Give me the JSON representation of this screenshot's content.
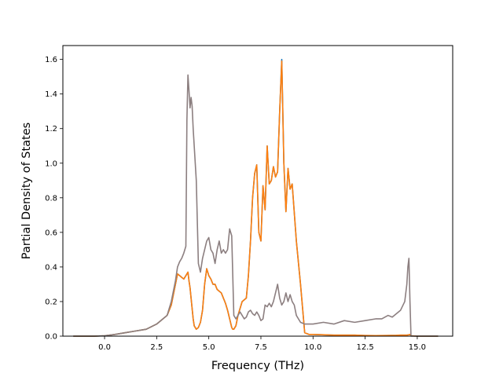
{
  "chart_data": {
    "type": "line",
    "title": "",
    "xlabel": "Frequency (THz)",
    "ylabel": "Partial Density of States",
    "xlim": [
      -2.0,
      16.7
    ],
    "ylim": [
      0.0,
      1.68
    ],
    "xticks": [
      0.0,
      2.5,
      5.0,
      7.5,
      10.0,
      12.5,
      15.0
    ],
    "xtick_labels": [
      "0.0",
      "2.5",
      "5.0",
      "7.5",
      "10.0",
      "12.5",
      "15.0"
    ],
    "yticks": [
      0.0,
      0.2,
      0.4,
      0.6,
      0.8,
      1.0,
      1.2,
      1.4,
      1.6
    ],
    "ytick_labels": [
      "0.0",
      "0.2",
      "0.4",
      "0.6",
      "0.8",
      "1.0",
      "1.2",
      "1.4",
      "1.6"
    ],
    "grid": false,
    "legend": "none",
    "series": [
      {
        "color": "#1f77b4",
        "x": [
          -1.5,
          -0.5,
          0.0,
          0.5,
          1.0,
          1.5,
          2.0,
          2.5,
          3.0,
          3.2,
          3.4,
          3.5,
          3.6,
          3.7,
          3.8,
          3.9,
          4.0,
          4.05,
          4.1,
          4.15,
          4.2,
          4.25,
          4.3,
          4.4,
          4.5,
          4.6,
          4.7,
          4.8,
          4.9,
          5.0,
          5.1,
          5.2,
          5.3,
          5.4,
          5.5,
          5.6,
          5.7,
          5.8,
          5.9,
          6.0,
          6.1,
          6.15,
          6.2,
          6.3,
          6.4,
          6.5,
          6.6,
          6.7,
          6.8,
          6.9,
          7.0,
          7.1,
          7.2,
          7.3,
          7.4,
          7.5,
          7.6,
          7.7,
          7.8,
          7.9,
          8.0,
          8.1,
          8.2,
          8.3,
          8.4,
          8.5,
          8.6,
          8.7,
          8.8,
          8.9,
          9.0,
          9.2,
          9.4,
          9.6,
          9.8,
          10.0,
          11.0,
          12.0,
          12.5,
          13.0,
          13.5,
          14.0,
          14.2,
          14.4,
          14.5,
          14.6,
          14.65,
          14.7,
          15.0,
          16.0
        ],
        "values": [
          0.0,
          0.0,
          0.002,
          0.01,
          0.02,
          0.03,
          0.04,
          0.07,
          0.12,
          0.18,
          0.3,
          0.36,
          0.35,
          0.34,
          0.33,
          0.35,
          0.37,
          0.32,
          0.28,
          0.22,
          0.16,
          0.1,
          0.06,
          0.04,
          0.05,
          0.08,
          0.15,
          0.3,
          0.39,
          0.35,
          0.33,
          0.3,
          0.3,
          0.27,
          0.26,
          0.25,
          0.22,
          0.19,
          0.15,
          0.1,
          0.05,
          0.04,
          0.04,
          0.06,
          0.12,
          0.16,
          0.2,
          0.21,
          0.22,
          0.35,
          0.55,
          0.8,
          0.94,
          0.99,
          0.6,
          0.55,
          0.87,
          0.73,
          1.1,
          0.88,
          0.9,
          0.98,
          0.92,
          0.95,
          1.3,
          1.6,
          1.0,
          0.72,
          0.97,
          0.85,
          0.88,
          0.55,
          0.3,
          0.02,
          0.01,
          0.01,
          0.006,
          0.006,
          0.004,
          0.003,
          0.004,
          0.005,
          0.006,
          0.006,
          0.006,
          0.008,
          0.01,
          0.002,
          0.0,
          0.0
        ]
      },
      {
        "color": "#ff7f0e",
        "x": [
          -1.5,
          -0.5,
          0.0,
          0.5,
          1.0,
          1.5,
          2.0,
          2.5,
          3.0,
          3.2,
          3.4,
          3.5,
          3.6,
          3.7,
          3.8,
          3.9,
          4.0,
          4.05,
          4.1,
          4.15,
          4.2,
          4.25,
          4.3,
          4.4,
          4.5,
          4.6,
          4.7,
          4.8,
          4.9,
          5.0,
          5.1,
          5.2,
          5.3,
          5.4,
          5.5,
          5.6,
          5.7,
          5.8,
          5.9,
          6.0,
          6.1,
          6.15,
          6.2,
          6.3,
          6.4,
          6.5,
          6.6,
          6.7,
          6.8,
          6.9,
          7.0,
          7.1,
          7.2,
          7.3,
          7.4,
          7.5,
          7.6,
          7.7,
          7.8,
          7.9,
          8.0,
          8.1,
          8.2,
          8.3,
          8.4,
          8.5,
          8.6,
          8.7,
          8.8,
          8.9,
          9.0,
          9.2,
          9.4,
          9.6,
          9.8,
          10.0,
          11.0,
          12.0,
          12.5,
          13.0,
          13.5,
          14.0,
          14.2,
          14.4,
          14.5,
          14.6,
          14.65,
          14.7,
          15.0,
          16.0
        ],
        "values": [
          0.0,
          0.0,
          0.002,
          0.01,
          0.02,
          0.03,
          0.04,
          0.07,
          0.12,
          0.18,
          0.3,
          0.36,
          0.35,
          0.34,
          0.33,
          0.35,
          0.37,
          0.32,
          0.28,
          0.22,
          0.16,
          0.1,
          0.06,
          0.04,
          0.05,
          0.08,
          0.15,
          0.3,
          0.39,
          0.35,
          0.33,
          0.3,
          0.3,
          0.27,
          0.26,
          0.25,
          0.22,
          0.19,
          0.15,
          0.1,
          0.05,
          0.04,
          0.04,
          0.06,
          0.12,
          0.16,
          0.2,
          0.21,
          0.22,
          0.35,
          0.55,
          0.8,
          0.94,
          0.99,
          0.6,
          0.55,
          0.87,
          0.73,
          1.1,
          0.88,
          0.9,
          0.98,
          0.92,
          0.95,
          1.3,
          1.59,
          1.0,
          0.72,
          0.97,
          0.85,
          0.88,
          0.55,
          0.3,
          0.02,
          0.01,
          0.01,
          0.006,
          0.006,
          0.004,
          0.003,
          0.004,
          0.005,
          0.006,
          0.006,
          0.006,
          0.008,
          0.01,
          0.002,
          0.0,
          0.0
        ]
      },
      {
        "color": "#8c7f80",
        "x": [
          -1.5,
          -0.5,
          0.0,
          0.5,
          1.0,
          1.5,
          2.0,
          2.5,
          3.0,
          3.2,
          3.4,
          3.5,
          3.6,
          3.7,
          3.8,
          3.9,
          3.95,
          4.0,
          4.05,
          4.1,
          4.15,
          4.2,
          4.25,
          4.3,
          4.4,
          4.5,
          4.6,
          4.7,
          4.8,
          4.9,
          5.0,
          5.1,
          5.2,
          5.3,
          5.4,
          5.5,
          5.6,
          5.7,
          5.8,
          5.9,
          6.0,
          6.1,
          6.15,
          6.2,
          6.3,
          6.4,
          6.5,
          6.6,
          6.7,
          6.8,
          6.9,
          7.0,
          7.1,
          7.2,
          7.3,
          7.4,
          7.5,
          7.6,
          7.7,
          7.8,
          7.9,
          8.0,
          8.1,
          8.2,
          8.3,
          8.4,
          8.5,
          8.6,
          8.7,
          8.8,
          8.9,
          9.0,
          9.1,
          9.2,
          9.4,
          9.6,
          9.8,
          10.0,
          10.5,
          11.0,
          11.5,
          12.0,
          12.5,
          13.0,
          13.3,
          13.6,
          13.8,
          14.0,
          14.2,
          14.4,
          14.5,
          14.55,
          14.6,
          14.65,
          14.7,
          15.0,
          16.0
        ],
        "values": [
          0.0,
          0.0,
          0.002,
          0.01,
          0.02,
          0.03,
          0.04,
          0.07,
          0.12,
          0.2,
          0.32,
          0.4,
          0.43,
          0.45,
          0.48,
          0.52,
          1.25,
          1.51,
          1.42,
          1.32,
          1.38,
          1.33,
          1.2,
          1.1,
          0.9,
          0.42,
          0.37,
          0.45,
          0.5,
          0.55,
          0.57,
          0.5,
          0.48,
          0.42,
          0.5,
          0.55,
          0.48,
          0.5,
          0.48,
          0.5,
          0.62,
          0.58,
          0.35,
          0.12,
          0.1,
          0.12,
          0.14,
          0.12,
          0.1,
          0.11,
          0.14,
          0.15,
          0.13,
          0.12,
          0.14,
          0.12,
          0.09,
          0.1,
          0.18,
          0.17,
          0.19,
          0.17,
          0.2,
          0.25,
          0.3,
          0.22,
          0.18,
          0.2,
          0.25,
          0.2,
          0.24,
          0.2,
          0.18,
          0.12,
          0.08,
          0.07,
          0.07,
          0.07,
          0.08,
          0.07,
          0.09,
          0.08,
          0.09,
          0.1,
          0.1,
          0.12,
          0.11,
          0.13,
          0.15,
          0.2,
          0.3,
          0.4,
          0.45,
          0.2,
          0.0,
          0.0,
          0.0
        ]
      }
    ]
  }
}
